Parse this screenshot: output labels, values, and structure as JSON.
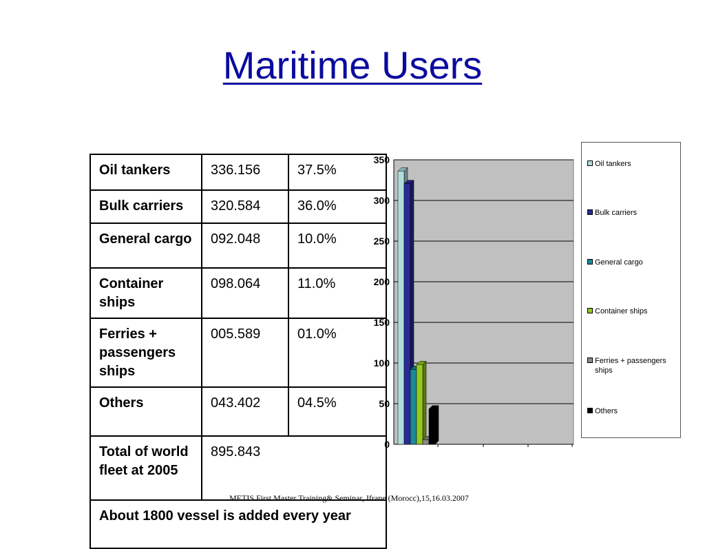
{
  "slide": {
    "title": "Maritime Users",
    "footer": "METIS First Master Training& Seminar, Ifrane (Morocc),15,16.03.2007"
  },
  "table": {
    "rows": [
      {
        "label": "Oil tankers",
        "value": "336.156",
        "percent": "37.5%"
      },
      {
        "label": "Bulk carriers",
        "value": "320.584",
        "percent": "36.0%"
      },
      {
        "label": "General cargo",
        "value": "092.048",
        "percent": "10.0%"
      },
      {
        "label": "Container ships",
        "value": "098.064",
        "percent": "11.0%"
      },
      {
        "label": "Ferries + passengers ships",
        "value": "005.589",
        "percent": "01.0%"
      },
      {
        "label": "Others",
        "value": "043.402",
        "percent": "04.5%"
      }
    ],
    "total": {
      "label": "Total of world fleet at 2005",
      "value": "895.843"
    },
    "note": "About 1800 vessel is added every year"
  },
  "chart_data": {
    "type": "bar",
    "series": [
      {
        "name": "Oil tankers",
        "values": [
          336.156
        ],
        "color": "#b0dcdc"
      },
      {
        "name": "Bulk carriers",
        "values": [
          320.584
        ],
        "color": "#2a2a96"
      },
      {
        "name": "General cargo",
        "values": [
          92.048
        ],
        "color": "#1a8a9a"
      },
      {
        "name": "Container ships",
        "values": [
          98.064
        ],
        "color": "#96c81e"
      },
      {
        "name": "Ferries + passengers ships",
        "values": [
          5.589
        ],
        "color": "#8a8a8a"
      },
      {
        "name": "Others",
        "values": [
          43.402
        ],
        "color": "#000000"
      }
    ],
    "yticks": [
      "0",
      "50",
      "100",
      "150",
      "200",
      "250",
      "300",
      "350"
    ],
    "ylim": [
      0,
      350
    ],
    "grid": true,
    "plot_background": "#c0c0c0",
    "legend_position": "right"
  }
}
